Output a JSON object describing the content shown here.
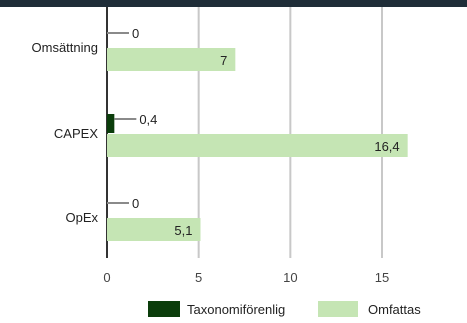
{
  "chart_data": {
    "type": "bar",
    "orientation": "horizontal",
    "categories": [
      "Omsättning",
      "CAPEX",
      "OpEx"
    ],
    "series": [
      {
        "name": "Taxonomiförenlig",
        "values": [
          0,
          0.4,
          0
        ],
        "labels": [
          "0",
          "0,4",
          "0"
        ],
        "color": "#0b3d0b"
      },
      {
        "name": "Omfattas",
        "values": [
          7,
          16.4,
          5.1
        ],
        "labels": [
          "7",
          "16,4",
          "5,1"
        ],
        "color": "#c5e5b4"
      }
    ],
    "xticks": [
      "0",
      "5",
      "10",
      "15"
    ],
    "xlim": [
      0,
      18
    ],
    "grid": true,
    "legend": "bottom"
  },
  "colors": {
    "topbar": "#1f2d38",
    "gridline": "#c8c8c8",
    "axis": "#333333",
    "leader": "#8a8a8a"
  }
}
